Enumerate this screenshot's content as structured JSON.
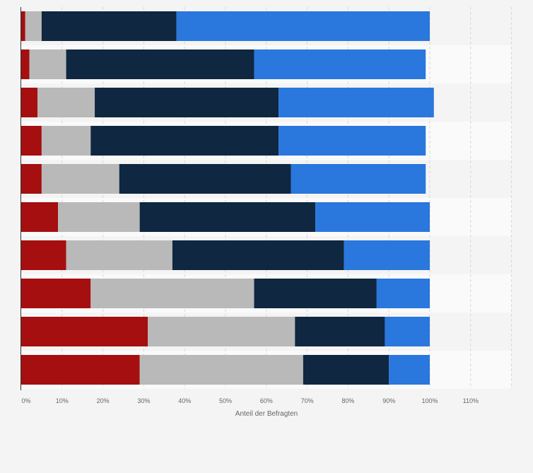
{
  "chart_data": {
    "type": "bar",
    "orientation": "horizontal",
    "stacked": true,
    "title": "",
    "xlabel": "Anteil der Befragten",
    "ylabel": "",
    "xlim": [
      0,
      120
    ],
    "x_ticks": [
      "0%",
      "10%",
      "20%",
      "30%",
      "40%",
      "50%",
      "60%",
      "70%",
      "80%",
      "90%",
      "100%",
      "110%"
    ],
    "grid": true,
    "legend": "none",
    "categories": [
      "",
      "",
      "",
      "",
      "",
      "",
      "",
      "",
      "",
      ""
    ],
    "series": [
      {
        "color": "#a50f0f",
        "values": [
          1,
          2,
          4,
          5,
          5,
          9,
          11,
          17,
          31,
          29
        ]
      },
      {
        "color": "#b9b9b9",
        "values": [
          4,
          9,
          14,
          12,
          19,
          20,
          26,
          40,
          36,
          40
        ]
      },
      {
        "color": "#0f2740",
        "values": [
          33,
          46,
          45,
          46,
          42,
          43,
          42,
          30,
          22,
          21
        ]
      },
      {
        "color": "#2a77dd",
        "values": [
          62,
          42,
          38,
          36,
          33,
          28,
          21,
          13,
          11,
          10
        ]
      }
    ]
  }
}
